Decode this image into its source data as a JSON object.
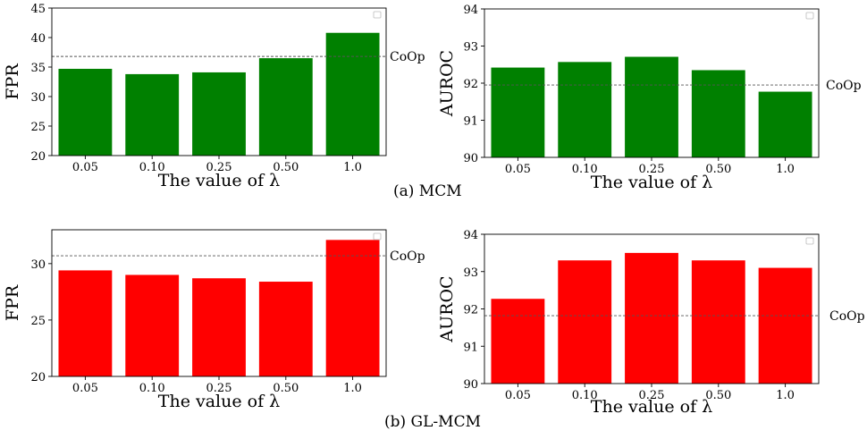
{
  "captions": {
    "a": "(a) MCM",
    "b": "(b) GL-MCM"
  },
  "chart_data": [
    {
      "id": "mcm-fpr",
      "type": "bar",
      "categories": [
        "0.05",
        "0.10",
        "0.25",
        "0.50",
        "1.0"
      ],
      "values": [
        34.7,
        33.8,
        34.1,
        36.5,
        40.8
      ],
      "color": "#008000",
      "xlabel": "The value of λ",
      "ylabel": "FPR",
      "ylim": [
        20,
        45
      ],
      "yticks": [
        "20",
        "25",
        "30",
        "35",
        "40",
        "45"
      ],
      "reference_value": 36.8,
      "reference_label": "CoOp",
      "grid": false,
      "legend": "top-right (empty)"
    },
    {
      "id": "mcm-auroc",
      "type": "bar",
      "categories": [
        "0.05",
        "0.10",
        "0.25",
        "0.50",
        "1.0"
      ],
      "values": [
        92.42,
        92.57,
        92.71,
        92.35,
        91.77
      ],
      "color": "#008000",
      "xlabel": "The value of λ",
      "ylabel": "AUROC",
      "ylim": [
        90,
        94
      ],
      "yticks": [
        "90",
        "91",
        "92",
        "93",
        "94"
      ],
      "reference_value": 91.95,
      "reference_label": "CoOp",
      "grid": false,
      "legend": "top-right (empty)"
    },
    {
      "id": "glmcm-fpr",
      "type": "bar",
      "categories": [
        "0.05",
        "0.10",
        "0.25",
        "0.50",
        "1.0"
      ],
      "values": [
        29.4,
        29.0,
        28.7,
        28.4,
        32.1
      ],
      "color": "#ff0000",
      "xlabel": "The value of λ",
      "ylabel": "FPR",
      "ylim": [
        20,
        33
      ],
      "yticks": [
        "20",
        "25",
        "30"
      ],
      "reference_value": 30.7,
      "reference_label": "CoOp",
      "grid": false,
      "legend": "top-right (empty)"
    },
    {
      "id": "glmcm-auroc",
      "type": "bar",
      "categories": [
        "0.05",
        "0.10",
        "0.25",
        "0.50",
        "1.0"
      ],
      "values": [
        92.27,
        93.3,
        93.5,
        93.3,
        93.1
      ],
      "color": "#ff0000",
      "xlabel": "The value of λ",
      "ylabel": "AUROC",
      "ylim": [
        90,
        94
      ],
      "yticks": [
        "90",
        "91",
        "92",
        "93",
        "94"
      ],
      "reference_value": 91.82,
      "reference_label": "CoOp",
      "grid": false,
      "legend": "top-right (empty)"
    }
  ]
}
